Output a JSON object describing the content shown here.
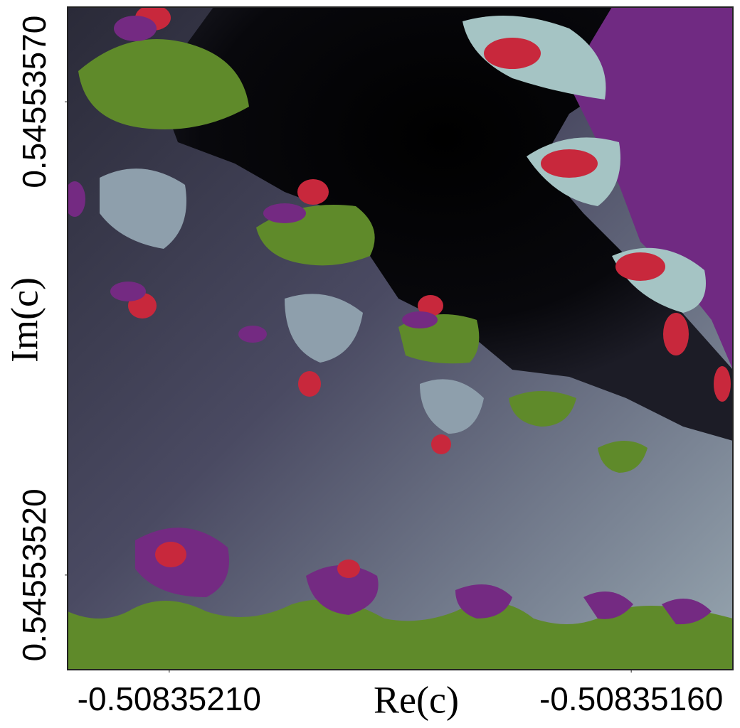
{
  "chart_data": {
    "type": "image",
    "xlabel": "Re(c)",
    "ylabel": "Im(c)",
    "xlim": [
      -0.50835221,
      -0.50835149
    ],
    "ylim": [
      0.5455351,
      0.5455358
    ],
    "xticks": [
      {
        "value": -0.5083521,
        "label": "-0.50835210"
      },
      {
        "value": -0.5083516,
        "label": "-0.50835160"
      }
    ],
    "yticks": [
      {
        "value": 0.5455352,
        "label": "0.54553520"
      },
      {
        "value": 0.5455357,
        "label": "0.54553570"
      }
    ]
  }
}
